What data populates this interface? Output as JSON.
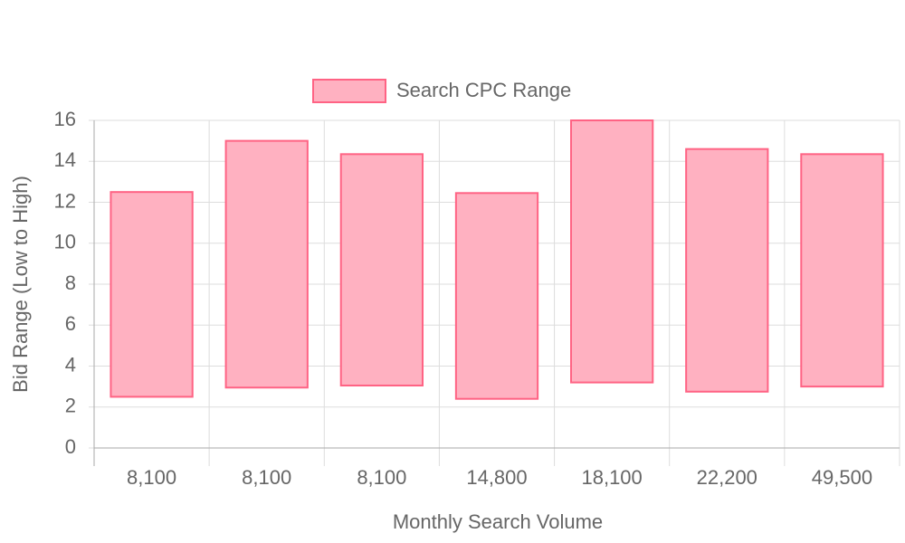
{
  "chart_data": {
    "type": "floating-bar",
    "xlabel": "Monthly Search Volume",
    "ylabel": "Bid Range (Low to High)",
    "categories": [
      "8,100",
      "8,100",
      "8,100",
      "14,800",
      "18,100",
      "22,200",
      "49,500"
    ],
    "series": [
      {
        "name": "Search CPC Range",
        "color": "#ff6384",
        "fill": "#ffb1c1",
        "values": [
          [
            2.5,
            12.5
          ],
          [
            2.95,
            15
          ],
          [
            3.05,
            14.35
          ],
          [
            2.4,
            12.45
          ],
          [
            3.2,
            16
          ],
          [
            2.75,
            14.6
          ],
          [
            3,
            14.35
          ]
        ]
      }
    ],
    "ylim": [
      0,
      16
    ],
    "yticks": [
      0,
      2,
      4,
      6,
      8,
      10,
      12,
      14,
      16
    ],
    "grid": true,
    "legend": "top"
  }
}
